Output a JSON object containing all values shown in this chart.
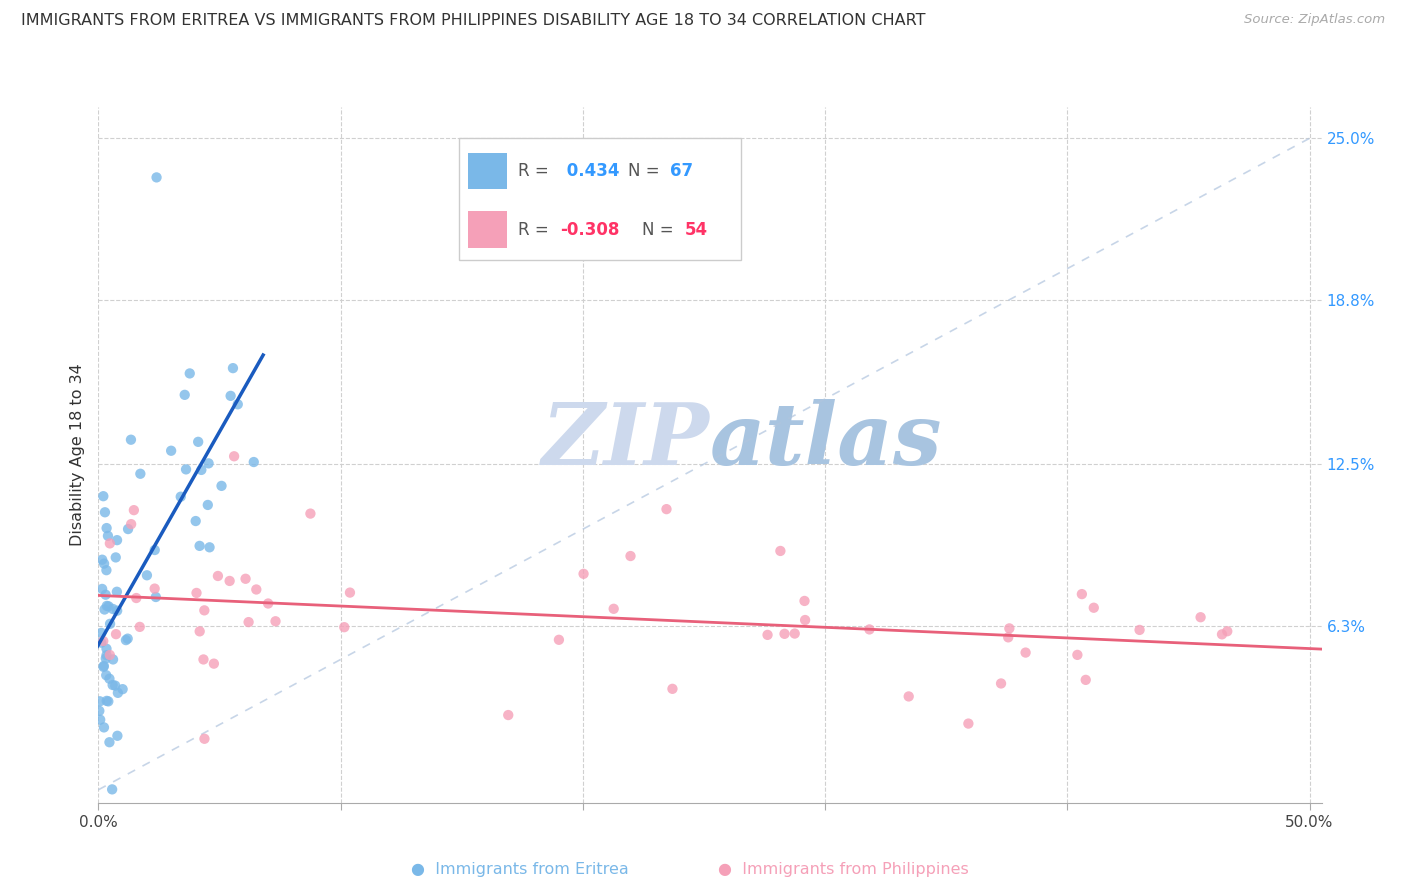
{
  "title": "IMMIGRANTS FROM ERITREA VS IMMIGRANTS FROM PHILIPPINES DISABILITY AGE 18 TO 34 CORRELATION CHART",
  "source": "Source: ZipAtlas.com",
  "ylabel": "Disability Age 18 to 34",
  "eritrea_color": "#7ab8e8",
  "philippines_color": "#f5a0b8",
  "eritrea_line_color": "#1a5bbf",
  "philippines_line_color": "#e8607a",
  "watermark_color": "#cdd9ed",
  "xlim": [
    0.0,
    0.505
  ],
  "ylim": [
    -0.005,
    0.262
  ],
  "ytick_vals": [
    0.063,
    0.125,
    0.188,
    0.25
  ],
  "ytick_labels": [
    "6.3%",
    "12.5%",
    "18.8%",
    "25.0%"
  ],
  "xtick_vals": [
    0.0,
    0.1,
    0.2,
    0.3,
    0.4,
    0.5
  ],
  "xtick_labels": [
    "0.0%",
    "",
    "",
    "",
    "",
    "50.0%"
  ],
  "R_eritrea": "0.434",
  "N_eritrea": "67",
  "R_philippines": "-0.308",
  "N_philippines": "54",
  "legend_R_color": "#3399ff",
  "legend_R_neg_color": "#ff3366",
  "legend_N_color": "#3399ff",
  "legend_N_neg_color": "#ff3366"
}
